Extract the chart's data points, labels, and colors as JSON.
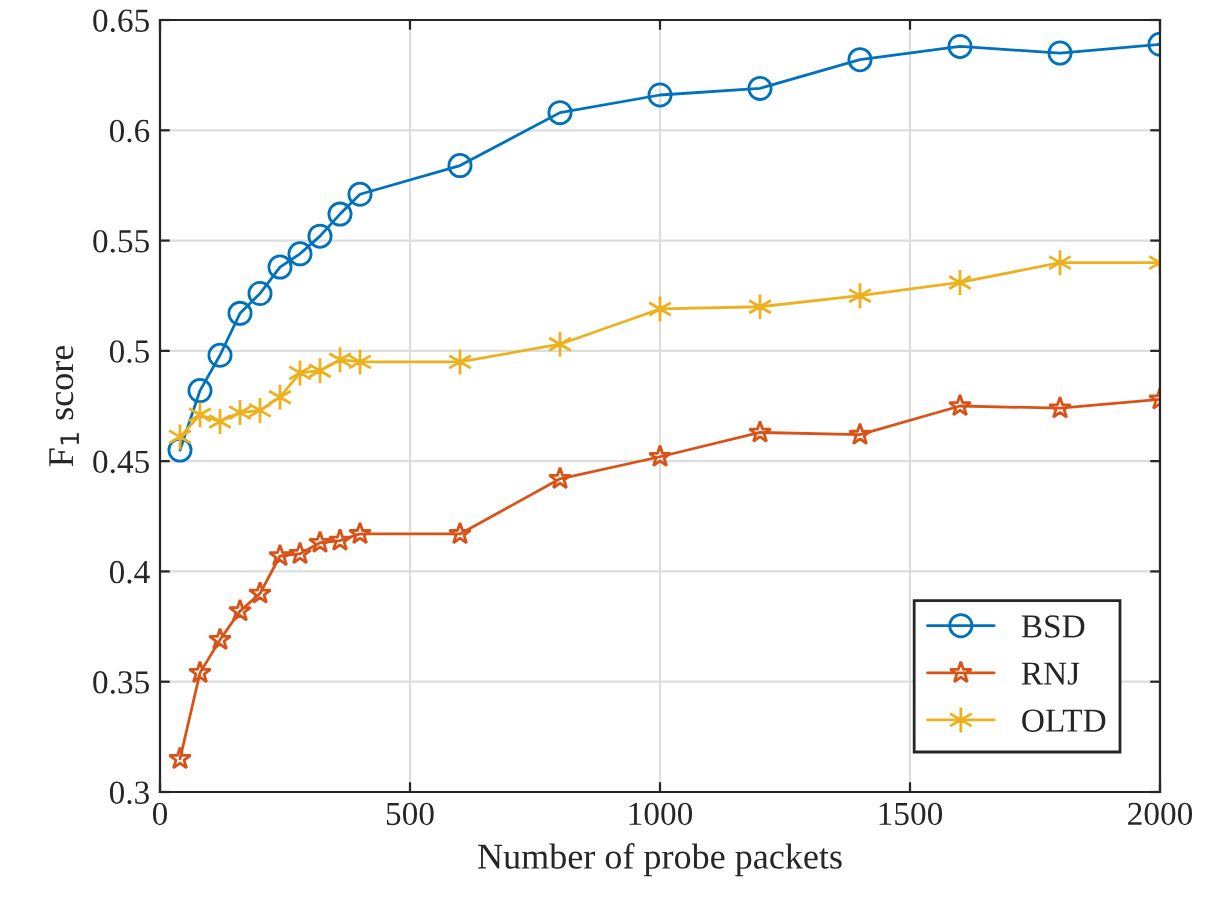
{
  "chart_data": {
    "type": "line",
    "xlabel": "Number of probe packets",
    "ylabel": "F$_{1}$ score",
    "x": [
      40,
      80,
      120,
      160,
      200,
      240,
      280,
      320,
      360,
      400,
      600,
      800,
      1000,
      1200,
      1400,
      1600,
      1800,
      2000
    ],
    "series": [
      {
        "name": "BSD",
        "color": "#0072bd",
        "marker": "circle",
        "values": [
          0.455,
          0.482,
          0.498,
          0.517,
          0.526,
          0.538,
          0.544,
          0.552,
          0.562,
          0.571,
          0.584,
          0.608,
          0.616,
          0.619,
          0.632,
          0.638,
          0.635,
          0.639
        ]
      },
      {
        "name": "RNJ",
        "color": "#d95319",
        "marker": "star",
        "values": [
          0.315,
          0.354,
          0.369,
          0.382,
          0.39,
          0.407,
          0.408,
          0.413,
          0.414,
          0.417,
          0.417,
          0.442,
          0.452,
          0.463,
          0.462,
          0.475,
          0.474,
          0.478
        ]
      },
      {
        "name": "OLTD",
        "color": "#edb120",
        "marker": "cross",
        "values": [
          0.461,
          0.471,
          0.468,
          0.472,
          0.473,
          0.479,
          0.49,
          0.491,
          0.496,
          0.495,
          0.495,
          0.503,
          0.519,
          0.52,
          0.525,
          0.531,
          0.54,
          0.54
        ]
      }
    ],
    "xlim": [
      0,
      2000
    ],
    "xticks": [
      0,
      500,
      1000,
      1500,
      2000
    ],
    "ylim": [
      0.3,
      0.65
    ],
    "yticks": [
      0.3,
      0.35,
      0.4,
      0.45,
      0.5,
      0.55,
      0.6,
      0.65
    ],
    "grid": true,
    "legend": "bottom right",
    "line_style": "solid"
  }
}
